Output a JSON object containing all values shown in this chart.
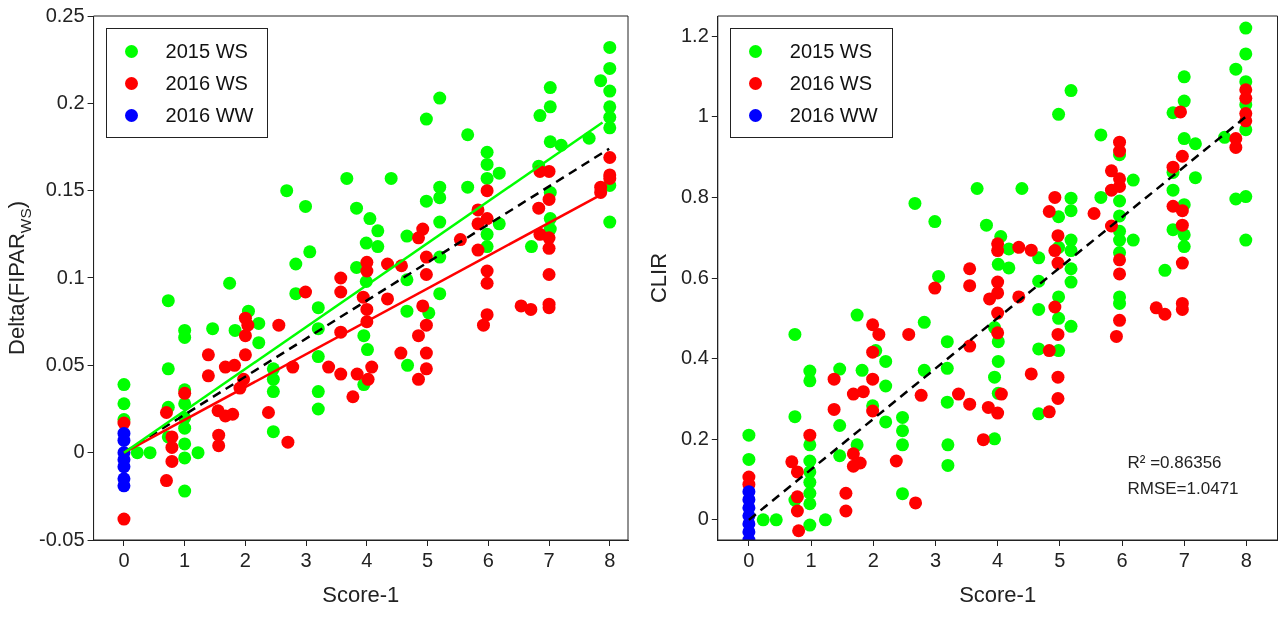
{
  "chart_data": [
    {
      "type": "scatter",
      "xlabel": "Score-1",
      "ylabel": "Delta(FIPAR$_{WS}$)",
      "xlim": [
        -0.5,
        8.3
      ],
      "ylim": [
        -0.05,
        0.25
      ],
      "xticks": [
        0,
        1,
        2,
        3,
        4,
        5,
        6,
        7,
        8
      ],
      "yticks": [
        -0.05,
        0,
        0.05,
        0.1,
        0.15,
        0.2,
        0.25
      ],
      "grid": false,
      "legend": "top left",
      "marker": "circle",
      "series": [
        {
          "name": "2015 WS",
          "color": "#00ff00",
          "x": [
            0,
            0,
            0,
            0.22,
            0.43,
            0.73,
            0.73,
            0.73,
            0.73,
            1,
            1,
            1,
            1,
            1,
            1,
            1,
            1,
            1,
            1.22,
            1.46,
            1.74,
            1.83,
            2.05,
            2.22,
            2.22,
            2.46,
            2.46,
            2.46,
            2.46,
            2.68,
            2.83,
            2.83,
            2.99,
            3.06,
            3.2,
            3.2,
            3.2,
            3.2,
            3.2,
            3.67,
            3.83,
            3.83,
            4.05,
            4.18,
            4.18,
            3.99,
            3.99,
            3.95,
            4.01,
            3.95,
            4.4,
            4.66,
            4.66,
            4.66,
            4.67,
            4.98,
            5.2,
            4.98,
            5.2,
            5.2,
            5.2,
            5.2,
            5.2,
            5.02,
            5.66,
            5.66,
            5.98,
            5.98,
            5.98,
            5.98,
            5.98,
            6.18,
            6.18,
            6.71,
            6.85,
            7.02,
            7.02,
            7.02,
            7.2,
            6.83,
            7.02,
            7.02,
            7.02,
            7.66,
            7.85,
            8,
            8,
            8,
            8,
            8,
            8,
            8,
            8
          ],
          "values": [
            0.039,
            0.028,
            0.019,
            0,
            0,
            0.087,
            0.048,
            0.026,
            0.009,
            0.07,
            0.066,
            0.036,
            0.028,
            0.02,
            0.014,
            0.005,
            -0.003,
            -0.022,
            0,
            0.071,
            0.097,
            0.07,
            0.081,
            0.074,
            0.063,
            0.048,
            0.042,
            0.035,
            0.012,
            0.15,
            0.108,
            0.091,
            0.141,
            0.115,
            0.083,
            0.071,
            0.055,
            0.035,
            0.025,
            0.157,
            0.14,
            0.106,
            0.134,
            0.127,
            0.118,
            0.12,
            0.098,
            0.067,
            0.059,
            0.039,
            0.157,
            0.124,
            0.099,
            0.081,
            0.05,
            0.191,
            0.203,
            0.144,
            0.152,
            0.146,
            0.132,
            0.112,
            0.091,
            0.08,
            0.182,
            0.152,
            0.172,
            0.165,
            0.157,
            0.125,
            0.118,
            0.16,
            0.131,
            0.118,
            0.193,
            0.209,
            0.198,
            0.178,
            0.176,
            0.164,
            0.149,
            0.134,
            0.128,
            0.18,
            0.213,
            0.232,
            0.22,
            0.207,
            0.198,
            0.192,
            0.186,
            0.153,
            0.132
          ]
        },
        {
          "name": "2016 WS",
          "color": "#ff0000",
          "x": [
            0,
            0,
            0.7,
            0.7,
            0.79,
            0.79,
            0.79,
            1,
            1.39,
            1.39,
            1.56,
            1.56,
            1.67,
            1.82,
            2,
            2,
            2,
            2.04,
            1.97,
            1.91,
            1.55,
            1.79,
            1.67,
            2.38,
            2.55,
            2.7,
            2.78,
            2.99,
            3.37,
            3.57,
            3.57,
            3.57,
            3.57,
            3.77,
            3.84,
            4,
            4,
            3.94,
            4,
            4,
            4.08,
            4.02,
            4.34,
            4.34,
            4.57,
            4.56,
            4.92,
            4.85,
            4.98,
            4.98,
            4.92,
            4.98,
            4.85,
            4.98,
            4.98,
            4.85,
            5.54,
            5.83,
            5.83,
            5.98,
            5.98,
            5.83,
            5.98,
            5.98,
            5.98,
            5.92,
            6.54,
            6.7,
            6.85,
            7,
            6.83,
            7,
            6.85,
            7,
            7,
            7,
            7,
            7,
            8,
            8,
            8,
            7.85,
            7.85
          ],
          "values": [
            0.017,
            -0.038,
            0.023,
            -0.016,
            0.009,
            0.003,
            -0.005,
            0.034,
            0.056,
            0.044,
            0.01,
            0.004,
            0.049,
            0.05,
            0.077,
            0.067,
            0.056,
            0.073,
            0.042,
            0.037,
            0.024,
            0.022,
            0.021,
            0.023,
            0.073,
            0.006,
            0.049,
            0.092,
            0.049,
            0.1,
            0.092,
            0.069,
            0.045,
            0.032,
            0.045,
            0.109,
            0.104,
            0.089,
            0.082,
            0.075,
            0.049,
            0.042,
            0.108,
            0.088,
            0.107,
            0.057,
            0.128,
            0.123,
            0.112,
            0.102,
            0.084,
            0.073,
            0.067,
            0.057,
            0.048,
            0.042,
            0.122,
            0.139,
            0.116,
            0.15,
            0.134,
            0.131,
            0.104,
            0.097,
            0.079,
            0.073,
            0.084,
            0.082,
            0.161,
            0.161,
            0.14,
            0.145,
            0.125,
            0.123,
            0.117,
            0.102,
            0.085,
            0.083,
            0.169,
            0.159,
            0.157,
            0.152,
            0.149
          ]
        },
        {
          "name": "2016 WW",
          "color": "#0000ff",
          "x": [
            0,
            0,
            0,
            0,
            0,
            0,
            0
          ],
          "values": [
            0.011,
            0.007,
            0,
            -0.004,
            -0.008,
            -0.015,
            -0.019
          ]
        },
        {
          "type": "line",
          "color": "#00ff00",
          "marker": "none",
          "line_style": "solid",
          "x": [
            0,
            7.88
          ],
          "values": [
            0,
            0.189
          ]
        },
        {
          "type": "line",
          "color": "#ff0000",
          "marker": "none",
          "line_style": "solid",
          "x": [
            0,
            7.82
          ],
          "values": [
            0,
            0.147
          ]
        },
        {
          "type": "line",
          "color": "#000000",
          "marker": "none",
          "line_style": "dashed",
          "x": [
            0,
            7.99
          ],
          "values": [
            0,
            0.174
          ]
        }
      ]
    },
    {
      "type": "scatter",
      "xlabel": "Score-1",
      "ylabel": "CLIR",
      "xlim": [
        -0.5,
        8.5
      ],
      "ylim": [
        -0.05,
        1.25
      ],
      "xticks": [
        0,
        1,
        2,
        3,
        4,
        5,
        6,
        7,
        8
      ],
      "yticks": [
        0,
        0.2,
        0.4,
        0.6,
        0.8,
        1,
        1.2
      ],
      "grid": false,
      "legend": "top left",
      "marker": "circle",
      "annotations": [
        "R² =0.86356",
        "RMSE=1.0471"
      ],
      "series": [
        {
          "name": "2015 WS",
          "color": "#00ff00",
          "x": [
            0,
            0,
            0.23,
            0.44,
            0.74,
            0.74,
            0.74,
            0.98,
            0.98,
            0.98,
            0.98,
            0.98,
            0.98,
            0.98,
            0.98,
            0.98,
            1.23,
            1.46,
            1.46,
            1.46,
            1.74,
            1.74,
            1.82,
            1.99,
            2.04,
            2.2,
            2.2,
            2.2,
            2.47,
            2.47,
            2.47,
            2.47,
            2.67,
            2.82,
            2.82,
            2.99,
            3.05,
            3.19,
            3.19,
            3.19,
            3.2,
            3.2,
            3.67,
            3.82,
            3.95,
            4.05,
            4.18,
            4.01,
            4.18,
            4.01,
            4.01,
            3.95,
            4.01,
            3.95,
            4.39,
            4.66,
            4.66,
            4.66,
            4.66,
            4.66,
            4.98,
            5.18,
            5.18,
            5.18,
            4.98,
            5.18,
            5.18,
            4.98,
            5.18,
            5.18,
            4.98,
            4.98,
            5.18,
            4.98,
            5.66,
            5.66,
            5.96,
            5.96,
            5.96,
            5.96,
            5.96,
            5.96,
            6.18,
            6.18,
            5.96,
            5.96,
            6.69,
            6.82,
            7,
            7,
            7,
            7.18,
            6.82,
            6.82,
            7.18,
            7,
            6.82,
            7,
            7,
            7.65,
            7.83,
            7.99,
            7.99,
            7.99,
            7.99,
            7.99,
            7.83,
            7.99,
            7.99
          ],
          "values": [
            0.21,
            0.15,
            0,
            0,
            0.46,
            0.256,
            0.049,
            0.369,
            0.345,
            0.186,
            0.146,
            0.119,
            0.093,
            0.066,
            0.04,
            -0.013,
            0,
            0.374,
            0.234,
            0.159,
            0.508,
            0.186,
            0.371,
            0.283,
            0.42,
            0.393,
            0.332,
            0.243,
            0.254,
            0.221,
            0.186,
            0.065,
            0.785,
            0.49,
            0.371,
            0.74,
            0.604,
            0.442,
            0.376,
            0.292,
            0.186,
            0.135,
            0.822,
            0.731,
            0.477,
            0.703,
            0.672,
            0.634,
            0.625,
            0.442,
            0.393,
            0.354,
            0.314,
            0.201,
            0.822,
            0.65,
            0.592,
            0.522,
            0.424,
            0.263,
            1.006,
            1.065,
            0.798,
            0.767,
            0.752,
            0.694,
            0.668,
            0.676,
            0.623,
            0.59,
            0.553,
            0.5,
            0.48,
            0.42,
            0.955,
            0.8,
            0.906,
            0.791,
            0.754,
            0.716,
            0.694,
            0.663,
            0.843,
            0.694,
            0.553,
            0.537,
            0.619,
            1.01,
            1.099,
            1.039,
            0.946,
            0.933,
            0.862,
            0.818,
            0.849,
            0.782,
            0.72,
            0.707,
            0.678,
            0.949,
            1.118,
            1.22,
            1.156,
            1.087,
            1.03,
            0.968,
            0.796,
            0.802,
            0.694
          ]
        },
        {
          "name": "2016 WS",
          "color": "#ff0000",
          "x": [
            0,
            0,
            0.69,
            0.78,
            0.78,
            0.78,
            0.8,
            0.98,
            1.37,
            1.37,
            1.56,
            1.56,
            1.68,
            1.84,
            1.68,
            1.68,
            1.79,
            1.99,
            2.09,
            1.99,
            1.99,
            1.99,
            2.57,
            2.37,
            2.68,
            2.77,
            2.99,
            3.37,
            3.55,
            3.55,
            3.55,
            3.55,
            3.77,
            3.85,
            4,
            4,
            4,
            4,
            3.87,
            4,
            4,
            4.06,
            4,
            4.34,
            4.54,
            4.34,
            4.54,
            4.92,
            4.83,
            4.97,
            4.92,
            4.97,
            4.92,
            4.97,
            4.83,
            4.97,
            4.97,
            4.83,
            5.55,
            5.83,
            5.96,
            5.96,
            5.96,
            5.83,
            5.96,
            5.83,
            5.96,
            5.96,
            5.96,
            5.91,
            6.55,
            6.69,
            6.94,
            6.97,
            6.82,
            6.82,
            6.97,
            6.97,
            6.97,
            6.97,
            6.97,
            7.99,
            7.99,
            7.99,
            7.99,
            7.83,
            7.83
          ],
          "values": [
            0.106,
            0.088,
            0.144,
            0.119,
            0.057,
            0.022,
            -0.027,
            0.21,
            0.349,
            0.274,
            0.066,
            0.022,
            0.312,
            0.318,
            0.164,
            0.133,
            0.141,
            0.484,
            0.46,
            0.416,
            0.349,
            0.27,
            0.46,
            0.146,
            0.042,
            0.309,
            0.575,
            0.312,
            0.623,
            0.581,
            0.431,
            0.287,
            0.199,
            0.279,
            0.685,
            0.668,
            0.59,
            0.563,
            0.548,
            0.513,
            0.464,
            0.312,
            0.265,
            0.676,
            0.669,
            0.553,
            0.362,
            0.8,
            0.765,
            0.705,
            0.668,
            0.637,
            0.528,
            0.46,
            0.42,
            0.354,
            0.301,
            0.268,
            0.76,
            0.866,
            0.937,
            0.915,
            0.846,
            0.818,
            0.827,
            0.729,
            0.645,
            0.61,
            0.495,
            0.455,
            0.526,
            0.51,
            1.012,
            0.902,
            0.875,
            0.778,
            0.767,
            0.731,
            0.637,
            0.537,
            0.522,
            1.067,
            1.046,
            1.008,
            0.99,
            0.946,
            0.924
          ]
        },
        {
          "name": "2016 WW",
          "color": "#0000ff",
          "x": [
            0,
            0,
            0,
            0,
            0,
            0,
            0
          ],
          "values": [
            0.07,
            0.05,
            0.03,
            0.01,
            -0.01,
            -0.03,
            -0.05
          ]
        },
        {
          "type": "line",
          "color": "#000000",
          "marker": "none",
          "line_style": "dashed",
          "x": [
            0,
            7.99
          ],
          "values": [
            0,
            1.0
          ]
        }
      ]
    }
  ]
}
